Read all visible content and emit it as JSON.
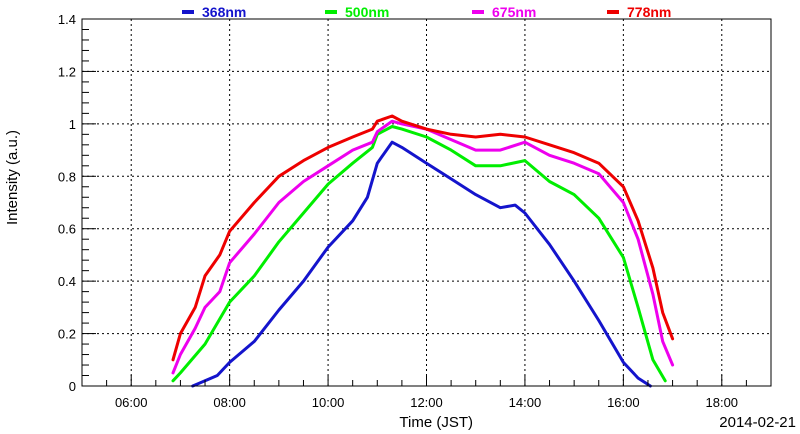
{
  "chart_data": {
    "type": "line",
    "xlabel": "Time (JST)",
    "ylabel": "Intensity (a.u.)",
    "date_label": "2014-02-21",
    "x_unit": "hours",
    "xlim": [
      5.0,
      19.0
    ],
    "ylim": [
      0,
      1.4
    ],
    "x_ticks": [
      6,
      8,
      10,
      12,
      14,
      16,
      18
    ],
    "x_tick_labels": [
      "06:00",
      "08:00",
      "10:00",
      "12:00",
      "14:00",
      "16:00",
      "18:00"
    ],
    "y_ticks": [
      0,
      0.2,
      0.4,
      0.6,
      0.8,
      1,
      1.2,
      1.4
    ],
    "y_tick_labels": [
      "0",
      "0.2",
      "0.4",
      "0.6",
      "0.8",
      "1",
      "1.2",
      "1.4"
    ],
    "grid": true,
    "legend_position": "top",
    "series": [
      {
        "name": "368nm",
        "color": "#1414cc",
        "x": [
          7.25,
          7.5,
          7.75,
          8.0,
          8.5,
          9.0,
          9.5,
          10.0,
          10.5,
          10.8,
          11.0,
          11.3,
          11.5,
          12.0,
          12.5,
          13.0,
          13.5,
          13.8,
          14.0,
          14.5,
          15.0,
          15.5,
          16.0,
          16.3,
          16.55
        ],
        "y": [
          0.0,
          0.02,
          0.04,
          0.09,
          0.17,
          0.29,
          0.4,
          0.53,
          0.63,
          0.72,
          0.85,
          0.93,
          0.91,
          0.85,
          0.79,
          0.73,
          0.68,
          0.69,
          0.66,
          0.54,
          0.4,
          0.25,
          0.09,
          0.03,
          0.0
        ]
      },
      {
        "name": "500nm",
        "color": "#00ee00",
        "x": [
          6.85,
          7.0,
          7.5,
          8.0,
          8.5,
          9.0,
          9.5,
          10.0,
          10.5,
          10.9,
          11.0,
          11.3,
          11.5,
          12.0,
          12.5,
          13.0,
          13.5,
          14.0,
          14.5,
          15.0,
          15.5,
          16.0,
          16.3,
          16.6,
          16.85
        ],
        "y": [
          0.02,
          0.05,
          0.16,
          0.32,
          0.42,
          0.55,
          0.66,
          0.77,
          0.85,
          0.91,
          0.96,
          0.99,
          0.98,
          0.95,
          0.9,
          0.84,
          0.84,
          0.86,
          0.78,
          0.73,
          0.64,
          0.49,
          0.3,
          0.1,
          0.02
        ]
      },
      {
        "name": "675nm",
        "color": "#ee00ee",
        "x": [
          6.85,
          7.0,
          7.3,
          7.5,
          7.8,
          8.0,
          8.5,
          9.0,
          9.5,
          10.0,
          10.5,
          10.9,
          11.0,
          11.3,
          11.5,
          12.0,
          12.5,
          13.0,
          13.5,
          14.0,
          14.5,
          15.0,
          15.5,
          16.0,
          16.3,
          16.6,
          16.8,
          17.0
        ],
        "y": [
          0.05,
          0.12,
          0.22,
          0.3,
          0.36,
          0.47,
          0.58,
          0.7,
          0.78,
          0.84,
          0.9,
          0.93,
          0.97,
          1.01,
          1.0,
          0.98,
          0.94,
          0.9,
          0.9,
          0.93,
          0.88,
          0.85,
          0.81,
          0.7,
          0.56,
          0.35,
          0.17,
          0.08
        ]
      },
      {
        "name": "778nm",
        "color": "#ee0000",
        "x": [
          6.85,
          7.0,
          7.3,
          7.5,
          7.8,
          8.0,
          8.5,
          9.0,
          9.5,
          10.0,
          10.5,
          10.9,
          11.0,
          11.3,
          11.5,
          12.0,
          12.5,
          13.0,
          13.5,
          14.0,
          14.5,
          15.0,
          15.5,
          16.0,
          16.3,
          16.6,
          16.8,
          17.0
        ],
        "y": [
          0.1,
          0.2,
          0.3,
          0.42,
          0.5,
          0.59,
          0.7,
          0.8,
          0.86,
          0.91,
          0.95,
          0.98,
          1.01,
          1.03,
          1.01,
          0.98,
          0.96,
          0.95,
          0.96,
          0.95,
          0.92,
          0.89,
          0.85,
          0.76,
          0.63,
          0.45,
          0.28,
          0.18
        ]
      }
    ]
  }
}
